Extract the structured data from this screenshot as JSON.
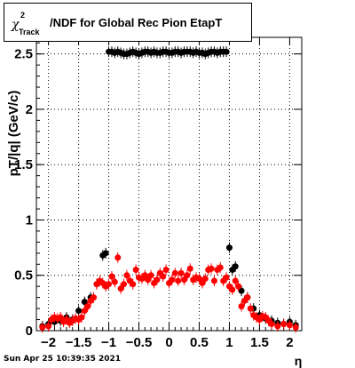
{
  "chart_data": {
    "type": "scatter",
    "title_main": "/NDF for Global Rec Pion EtapT",
    "title_chi": "χ",
    "title_sup": "2",
    "title_sub": "Track",
    "xlabel": "η",
    "ylabel": "pT/|q| (GeV/c)",
    "xlim": [
      -2.2,
      2.2
    ],
    "ylim": [
      0,
      2.65
    ],
    "xticks": [
      -2,
      -1.5,
      -1,
      -0.5,
      0,
      0.5,
      1,
      1.5,
      2
    ],
    "xtick_labels": [
      "−2",
      "−1.5",
      "−1",
      "−0.5",
      "0",
      "0.5",
      "1",
      "1.5",
      "2"
    ],
    "yticks": [
      0,
      0.5,
      1,
      1.5,
      2,
      2.5
    ],
    "ytick_labels": [
      "0",
      "0.5",
      "1",
      "1.5",
      "2",
      "2.5"
    ],
    "grid": true,
    "series": [
      {
        "color": "#000000",
        "points": [
          [
            -2.1,
            0.04
          ],
          [
            -2.0,
            0.06
          ],
          [
            -1.9,
            0.08
          ],
          [
            -1.8,
            0.09
          ],
          [
            -1.7,
            0.12
          ],
          [
            -1.6,
            0.1
          ],
          [
            -1.5,
            0.18
          ],
          [
            -1.4,
            0.26
          ],
          [
            -1.3,
            0.3
          ],
          [
            -1.2,
            0.42
          ],
          [
            -1.1,
            0.68
          ],
          [
            -1.05,
            0.7
          ],
          [
            -1.0,
            2.52
          ],
          [
            -0.95,
            2.52
          ],
          [
            -0.9,
            2.51
          ],
          [
            -0.85,
            2.52
          ],
          [
            -0.8,
            2.51
          ],
          [
            -0.75,
            2.5
          ],
          [
            -0.7,
            2.5
          ],
          [
            -0.65,
            2.51
          ],
          [
            -0.6,
            2.52
          ],
          [
            -0.55,
            2.51
          ],
          [
            -0.5,
            2.5
          ],
          [
            -0.45,
            2.51
          ],
          [
            -0.4,
            2.52
          ],
          [
            -0.35,
            2.52
          ],
          [
            -0.3,
            2.51
          ],
          [
            -0.25,
            2.52
          ],
          [
            -0.2,
            2.51
          ],
          [
            -0.15,
            2.51
          ],
          [
            -0.1,
            2.52
          ],
          [
            -0.05,
            2.52
          ],
          [
            0.0,
            2.51
          ],
          [
            0.05,
            2.51
          ],
          [
            0.1,
            2.52
          ],
          [
            0.15,
            2.52
          ],
          [
            0.2,
            2.51
          ],
          [
            0.25,
            2.52
          ],
          [
            0.3,
            2.52
          ],
          [
            0.35,
            2.52
          ],
          [
            0.4,
            2.51
          ],
          [
            0.45,
            2.52
          ],
          [
            0.5,
            2.51
          ],
          [
            0.55,
            2.51
          ],
          [
            0.6,
            2.5
          ],
          [
            0.65,
            2.51
          ],
          [
            0.7,
            2.52
          ],
          [
            0.75,
            2.52
          ],
          [
            0.8,
            2.51
          ],
          [
            0.85,
            2.52
          ],
          [
            0.9,
            2.52
          ],
          [
            0.95,
            2.52
          ],
          [
            1.0,
            0.75
          ],
          [
            1.05,
            0.55
          ],
          [
            1.1,
            0.58
          ],
          [
            1.2,
            0.36
          ],
          [
            1.3,
            0.3
          ],
          [
            1.4,
            0.2
          ],
          [
            1.5,
            0.14
          ],
          [
            1.6,
            0.11
          ],
          [
            1.7,
            0.09
          ],
          [
            1.8,
            0.07
          ],
          [
            1.9,
            0.06
          ],
          [
            2.0,
            0.08
          ],
          [
            2.1,
            0.05
          ]
        ]
      },
      {
        "color": "#ff0000",
        "points": [
          [
            -2.1,
            0.03
          ],
          [
            -2.0,
            0.04
          ],
          [
            -1.95,
            0.1
          ],
          [
            -1.9,
            0.12
          ],
          [
            -1.85,
            0.11
          ],
          [
            -1.8,
            0.12
          ],
          [
            -1.75,
            0.08
          ],
          [
            -1.7,
            0.1
          ],
          [
            -1.65,
            0.07
          ],
          [
            -1.6,
            0.09
          ],
          [
            -1.55,
            0.11
          ],
          [
            -1.5,
            0.1
          ],
          [
            -1.45,
            0.12
          ],
          [
            -1.4,
            0.18
          ],
          [
            -1.35,
            0.22
          ],
          [
            -1.3,
            0.27
          ],
          [
            -1.25,
            0.3
          ],
          [
            -1.2,
            0.42
          ],
          [
            -1.15,
            0.45
          ],
          [
            -1.1,
            0.43
          ],
          [
            -1.05,
            0.4
          ],
          [
            -1.0,
            0.42
          ],
          [
            -0.95,
            0.49
          ],
          [
            -0.9,
            0.44
          ],
          [
            -0.85,
            0.66
          ],
          [
            -0.8,
            0.38
          ],
          [
            -0.75,
            0.42
          ],
          [
            -0.7,
            0.5
          ],
          [
            -0.65,
            0.45
          ],
          [
            -0.6,
            0.42
          ],
          [
            -0.55,
            0.55
          ],
          [
            -0.5,
            0.48
          ],
          [
            -0.45,
            0.47
          ],
          [
            -0.4,
            0.5
          ],
          [
            -0.35,
            0.46
          ],
          [
            -0.3,
            0.5
          ],
          [
            -0.25,
            0.43
          ],
          [
            -0.2,
            0.46
          ],
          [
            -0.15,
            0.52
          ],
          [
            -0.1,
            0.49
          ],
          [
            -0.05,
            0.55
          ],
          [
            0.0,
            0.43
          ],
          [
            0.05,
            0.46
          ],
          [
            0.1,
            0.52
          ],
          [
            0.15,
            0.45
          ],
          [
            0.2,
            0.52
          ],
          [
            0.25,
            0.46
          ],
          [
            0.3,
            0.5
          ],
          [
            0.35,
            0.56
          ],
          [
            0.4,
            0.46
          ],
          [
            0.45,
            0.48
          ],
          [
            0.5,
            0.47
          ],
          [
            0.55,
            0.43
          ],
          [
            0.6,
            0.47
          ],
          [
            0.65,
            0.55
          ],
          [
            0.7,
            0.56
          ],
          [
            0.75,
            0.45
          ],
          [
            0.8,
            0.55
          ],
          [
            0.85,
            0.57
          ],
          [
            0.9,
            0.45
          ],
          [
            0.95,
            0.48
          ],
          [
            1.0,
            0.4
          ],
          [
            1.05,
            0.37
          ],
          [
            1.1,
            0.45
          ],
          [
            1.15,
            0.4
          ],
          [
            1.2,
            0.22
          ],
          [
            1.25,
            0.27
          ],
          [
            1.3,
            0.3
          ],
          [
            1.35,
            0.2
          ],
          [
            1.4,
            0.14
          ],
          [
            1.45,
            0.12
          ],
          [
            1.5,
            0.1
          ],
          [
            1.55,
            0.13
          ],
          [
            1.6,
            0.12
          ],
          [
            1.65,
            0.09
          ],
          [
            1.7,
            0.06
          ],
          [
            1.8,
            0.04
          ],
          [
            1.9,
            0.06
          ],
          [
            2.0,
            0.05
          ],
          [
            2.1,
            0.03
          ]
        ]
      }
    ]
  },
  "footer": {
    "timestamp": "Sun Apr 25 10:39:35 2021"
  }
}
